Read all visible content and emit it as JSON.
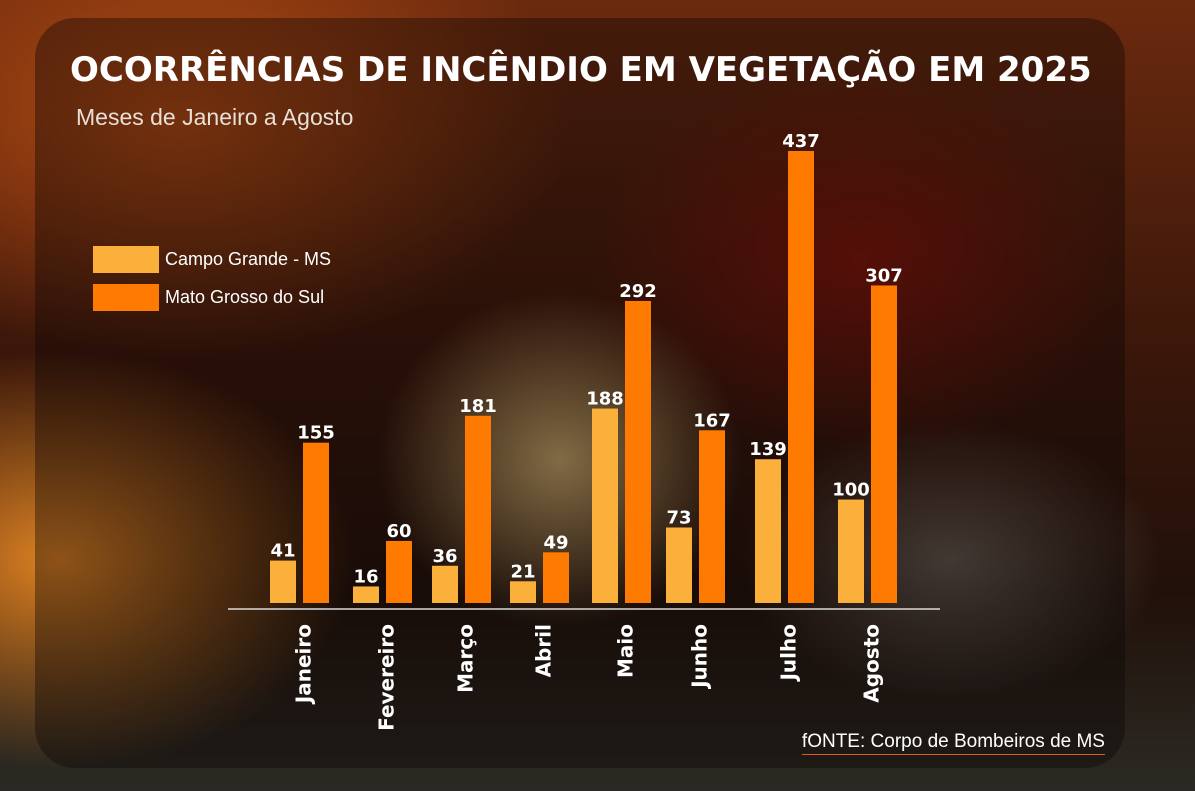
{
  "chart_data": {
    "type": "bar",
    "title": "OCORRÊNCIAS DE INCÊNDIO EM VEGETAÇÃO EM 2025",
    "subtitle": "Meses de Janeiro a Agosto",
    "categories": [
      "Janeiro",
      "Fevereiro",
      "Março",
      "Abril",
      "Maio",
      "Junho",
      "Julho",
      "Agosto"
    ],
    "series": [
      {
        "name": "Campo Grande - MS",
        "color": "#fbb03b",
        "values": [
          41,
          16,
          36,
          21,
          188,
          73,
          139,
          100
        ]
      },
      {
        "name": "Mato Grosso do Sul",
        "color": "#ff7a00",
        "values": [
          155,
          60,
          181,
          49,
          292,
          167,
          437,
          307
        ]
      }
    ],
    "ylim": [
      0,
      437
    ],
    "grid": false,
    "legend_position": "top-left",
    "source": "fONTE: Corpo de Bombeiros de MS"
  }
}
